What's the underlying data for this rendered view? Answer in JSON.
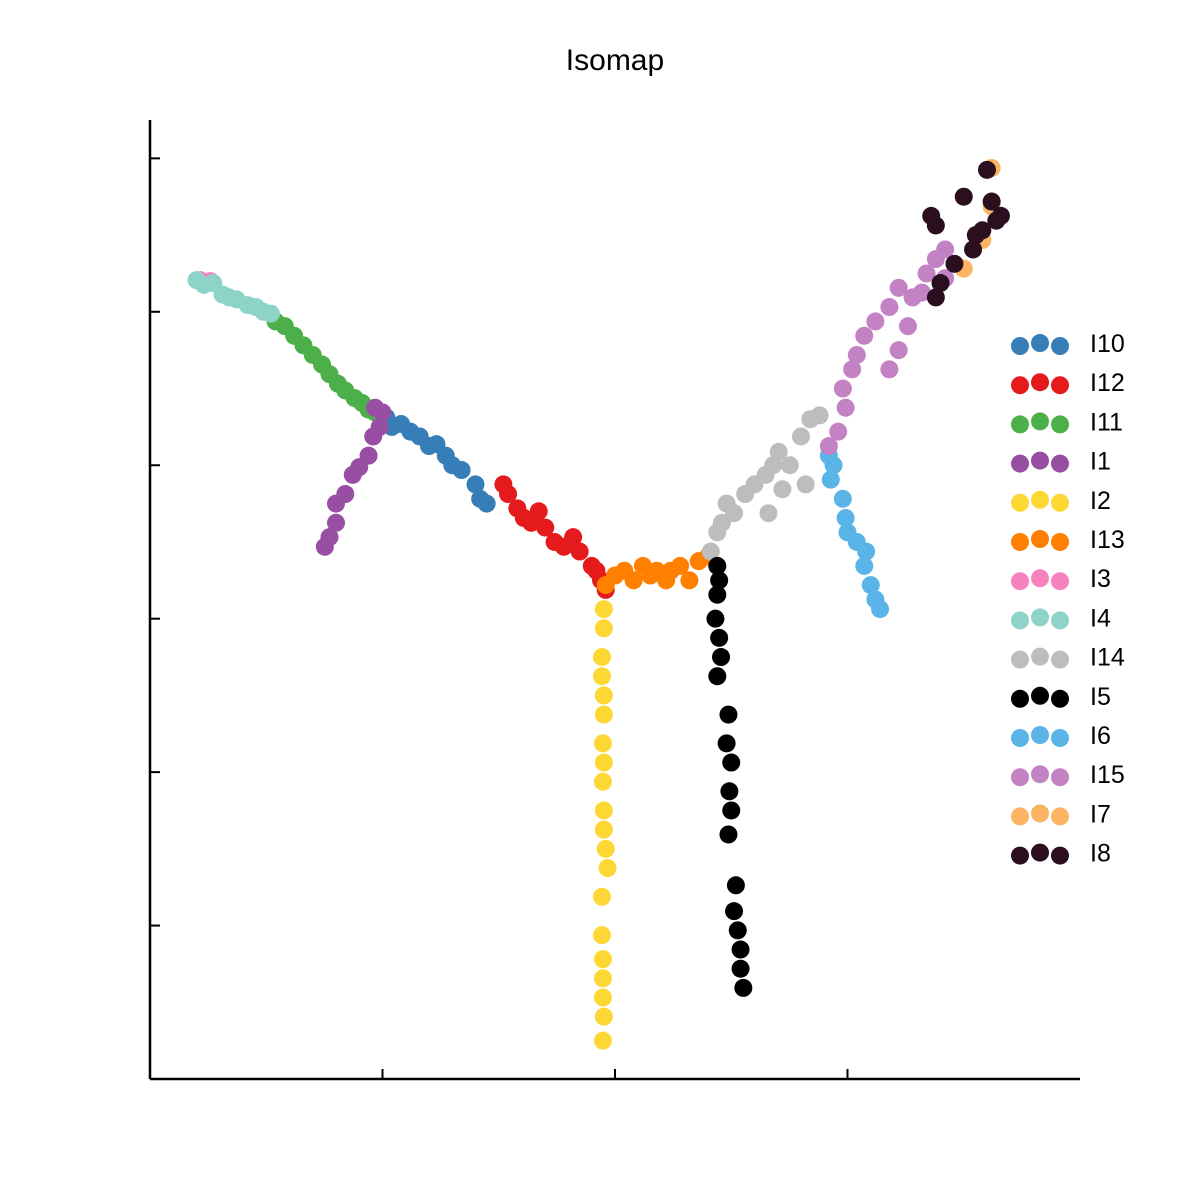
{
  "chart_data": {
    "type": "scatter",
    "title": "Isomap",
    "xlabel": "",
    "ylabel": "",
    "xlim": [
      0,
      100
    ],
    "ylim": [
      0,
      100
    ],
    "xticks": [
      25,
      50,
      75
    ],
    "yticks": [
      0,
      16,
      32,
      48,
      64,
      80,
      96
    ],
    "show_tick_labels": false,
    "grid": false,
    "legend": "right",
    "series": [
      {
        "name": "I10",
        "color": "#377eb8",
        "points": [
          [
            25.4,
            69
          ],
          [
            26,
            68
          ],
          [
            27,
            68.3
          ],
          [
            28,
            67.5
          ],
          [
            29,
            67
          ],
          [
            30,
            66
          ],
          [
            30.8,
            66.2
          ],
          [
            31.8,
            65
          ],
          [
            32.5,
            64
          ],
          [
            33.5,
            63.5
          ],
          [
            35,
            62
          ],
          [
            35.5,
            60.5
          ],
          [
            36.2,
            60
          ]
        ]
      },
      {
        "name": "I12",
        "color": "#e41a1c",
        "points": [
          [
            38,
            62
          ],
          [
            38.5,
            61
          ],
          [
            39.5,
            59.5
          ],
          [
            40.2,
            58.5
          ],
          [
            41,
            58
          ],
          [
            41.8,
            59.2
          ],
          [
            42.5,
            57.5
          ],
          [
            43.5,
            56
          ],
          [
            44.5,
            55.5
          ],
          [
            45.5,
            56.5
          ],
          [
            46.2,
            55
          ],
          [
            47.5,
            53.5
          ],
          [
            48,
            53
          ],
          [
            48.5,
            52
          ],
          [
            49,
            51
          ]
        ]
      },
      {
        "name": "I11",
        "color": "#4daf4a",
        "points": [
          [
            13.5,
            79
          ],
          [
            14.5,
            78.5
          ],
          [
            15.5,
            77.5
          ],
          [
            16.5,
            76.5
          ],
          [
            17.5,
            75.5
          ],
          [
            18.5,
            74.5
          ],
          [
            19.3,
            73.5
          ],
          [
            20.2,
            72.5
          ],
          [
            21,
            71.8
          ],
          [
            22,
            71
          ],
          [
            22.8,
            70.5
          ],
          [
            23.5,
            69.8
          ],
          [
            24.2,
            69.5
          ]
        ]
      },
      {
        "name": "I1",
        "color": "#984ea3",
        "points": [
          [
            18.8,
            55.5
          ],
          [
            19.3,
            56.5
          ],
          [
            20,
            58
          ],
          [
            20,
            60
          ],
          [
            21,
            61
          ],
          [
            21.8,
            63
          ],
          [
            22.5,
            63.8
          ],
          [
            23.5,
            65
          ],
          [
            24,
            67
          ],
          [
            24.7,
            68
          ],
          [
            25,
            69.5
          ],
          [
            24.2,
            70
          ]
        ]
      },
      {
        "name": "I2",
        "color": "#fdd835",
        "points": [
          [
            48.8,
            49
          ],
          [
            48.8,
            47
          ],
          [
            48.6,
            44
          ],
          [
            48.6,
            42
          ],
          [
            48.8,
            40
          ],
          [
            48.8,
            38
          ],
          [
            48.7,
            35
          ],
          [
            48.8,
            33
          ],
          [
            48.7,
            31
          ],
          [
            48.8,
            28
          ],
          [
            48.8,
            26
          ],
          [
            49,
            24
          ],
          [
            49.2,
            22
          ],
          [
            48.6,
            19
          ],
          [
            48.6,
            15
          ],
          [
            48.7,
            12.5
          ],
          [
            48.7,
            10.5
          ],
          [
            48.7,
            8.5
          ],
          [
            48.8,
            6.5
          ],
          [
            48.7,
            4
          ]
        ]
      },
      {
        "name": "I13",
        "color": "#ff7f00",
        "points": [
          [
            49,
            51.5
          ],
          [
            50,
            52.5
          ],
          [
            51,
            53
          ],
          [
            52,
            52
          ],
          [
            53,
            53.5
          ],
          [
            53.8,
            52.5
          ],
          [
            54.5,
            53
          ],
          [
            55.5,
            52
          ],
          [
            56,
            53
          ],
          [
            57,
            53.5
          ],
          [
            58,
            52
          ],
          [
            59,
            54
          ],
          [
            60,
            54.5
          ]
        ]
      },
      {
        "name": "I3",
        "color": "#f781bf",
        "points": [
          [
            5.4,
            83.3
          ],
          [
            6,
            83
          ],
          [
            6.5,
            83.2
          ]
        ]
      },
      {
        "name": "I4",
        "color": "#8dd3c7",
        "points": [
          [
            5,
            83.3
          ],
          [
            5.8,
            82.8
          ],
          [
            6.8,
            83
          ],
          [
            7.8,
            81.8
          ],
          [
            8.5,
            81.5
          ],
          [
            9.3,
            81.3
          ],
          [
            10.5,
            80.7
          ],
          [
            11.4,
            80.5
          ],
          [
            12.2,
            80
          ],
          [
            13,
            79.8
          ]
        ]
      },
      {
        "name": "I14",
        "color": "#bdbdbd",
        "points": [
          [
            60.3,
            55
          ],
          [
            61,
            57
          ],
          [
            61.5,
            58
          ],
          [
            62,
            60
          ],
          [
            62.8,
            59
          ],
          [
            64,
            61
          ],
          [
            65,
            62
          ],
          [
            66.2,
            63
          ],
          [
            67,
            64
          ],
          [
            67.6,
            65.4
          ],
          [
            68.8,
            64
          ],
          [
            70,
            67
          ],
          [
            71,
            68.8
          ],
          [
            72,
            69.2
          ],
          [
            70.5,
            62
          ],
          [
            68,
            61.5
          ],
          [
            66.5,
            59
          ]
        ]
      },
      {
        "name": "I5",
        "color": "#000000",
        "points": [
          [
            61,
            53.5
          ],
          [
            61.2,
            52
          ],
          [
            61,
            50.5
          ],
          [
            60.8,
            48
          ],
          [
            61.2,
            46
          ],
          [
            61.4,
            44
          ],
          [
            61,
            42
          ],
          [
            62.2,
            38
          ],
          [
            62,
            35
          ],
          [
            62.5,
            33
          ],
          [
            62.3,
            30
          ],
          [
            62.5,
            28
          ],
          [
            62.2,
            25.5
          ],
          [
            63,
            20.2
          ],
          [
            62.8,
            17.5
          ],
          [
            63.2,
            15.5
          ],
          [
            63.5,
            13.5
          ],
          [
            63.5,
            11.5
          ],
          [
            63.8,
            9.5
          ]
        ]
      },
      {
        "name": "I6",
        "color": "#5ab4e8",
        "points": [
          [
            73,
            65
          ],
          [
            73.5,
            64
          ],
          [
            73.2,
            62.5
          ],
          [
            74.5,
            60.5
          ],
          [
            74.8,
            58.5
          ],
          [
            75,
            57
          ],
          [
            76,
            56
          ],
          [
            77,
            55
          ],
          [
            76.8,
            53.5
          ],
          [
            77.5,
            51.5
          ],
          [
            78,
            50
          ],
          [
            78.5,
            49
          ]
        ]
      },
      {
        "name": "I15",
        "color": "#c282c4",
        "points": [
          [
            73,
            66
          ],
          [
            74,
            67.5
          ],
          [
            74.8,
            70
          ],
          [
            74.5,
            72
          ],
          [
            75.5,
            74
          ],
          [
            76,
            75.5
          ],
          [
            76.8,
            77.5
          ],
          [
            78,
            79
          ],
          [
            79.5,
            80.5
          ],
          [
            80.5,
            82.5
          ],
          [
            82,
            81.5
          ],
          [
            83.5,
            84
          ],
          [
            84.5,
            85.5
          ],
          [
            85.5,
            86.5
          ],
          [
            85.5,
            83.5
          ],
          [
            83,
            82
          ],
          [
            81.5,
            78.5
          ],
          [
            80.5,
            76
          ],
          [
            79.5,
            74
          ]
        ]
      },
      {
        "name": "I7",
        "color": "#fdb462",
        "points": [
          [
            90.5,
            95
          ],
          [
            90.5,
            91
          ],
          [
            89.5,
            87.5
          ],
          [
            87.5,
            84.5
          ]
        ]
      },
      {
        "name": "I8",
        "color": "#2b0f1e",
        "points": [
          [
            90,
            94.8
          ],
          [
            87.5,
            92
          ],
          [
            84.5,
            89
          ],
          [
            84,
            90
          ],
          [
            90.5,
            91.5
          ],
          [
            91.5,
            90
          ],
          [
            89.5,
            88.5
          ],
          [
            88.5,
            86.5
          ],
          [
            86.5,
            85
          ],
          [
            85,
            83
          ],
          [
            84.5,
            81.5
          ],
          [
            91,
            89.5
          ],
          [
            88.8,
            88
          ]
        ]
      }
    ]
  }
}
